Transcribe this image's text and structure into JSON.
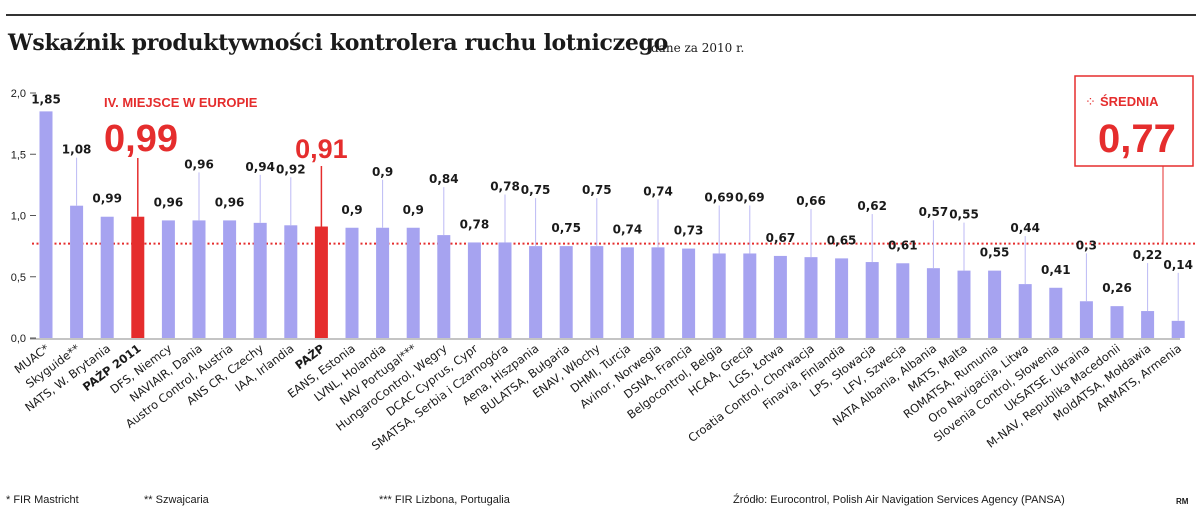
{
  "header": {
    "title": "Wskaźnik produktywności kontrolera ruchu lotniczego",
    "subtitle": "dane za 2010 r."
  },
  "chart_data": {
    "type": "bar",
    "title": "Wskaźnik produktywności kontrolera ruchu lotniczego",
    "subtitle": "dane za 2010 r.",
    "xlabel": "",
    "ylabel": "",
    "ylim": [
      0,
      2.0
    ],
    "yticks": [
      "0,0",
      "0,5",
      "1,0",
      "1,5",
      "2,0"
    ],
    "ytick_values": [
      0,
      0.5,
      1.0,
      1.5,
      2.0
    ],
    "grid": false,
    "legend": "none",
    "categories": [
      "MUAC*",
      "Skyguide**",
      "NATS, W. Brytania",
      "PAŻP 2011",
      "DFS, Niemcy",
      "NAVIAIR, Dania",
      "Austro Control, Austria",
      "ANS CR, Czechy",
      "IAA, Irlandia",
      "PAŻP",
      "EANS, Estonia",
      "LVNL, Holandia",
      "NAV Portugal***",
      "HungaroControl, Węgry",
      "DCAC Cyprus, Cypr",
      "SMATSA, Serbia i Czarnogóra",
      "Aena, Hiszpania",
      "BULATSA, Bułgaria",
      "ENAV, Włochy",
      "DHMI, Turcja",
      "Avinor, Norwegia",
      "DSNA, Francja",
      "Belgocontrol, Belgia",
      "HCAA, Grecja",
      "LGS, Łotwa",
      "Croatia Control, Chorwacja",
      "Finavia, Finlandia",
      "LPS, Słowacja",
      "LFV, Szwecja",
      "NATA Albania, Albania",
      "MATS, Malta",
      "ROMATSA, Rumunia",
      "Oro Navigacija, Litwa",
      "Slovenia Control, Słowenia",
      "UkSATSE, Ukraina",
      "M-NAV, Republika Macedonii",
      "MoldATSA, Mołdawia",
      "ARMATS, Armenia"
    ],
    "values": [
      1.85,
      1.08,
      0.99,
      0.99,
      0.96,
      0.96,
      0.96,
      0.94,
      0.92,
      0.91,
      0.9,
      0.9,
      0.9,
      0.84,
      0.78,
      0.78,
      0.75,
      0.75,
      0.75,
      0.74,
      0.74,
      0.73,
      0.69,
      0.69,
      0.67,
      0.66,
      0.65,
      0.62,
      0.61,
      0.57,
      0.55,
      0.55,
      0.44,
      0.41,
      0.3,
      0.26,
      0.22,
      0.14
    ],
    "value_labels": [
      "1,85",
      "1,08",
      "0,99",
      "",
      "0,96",
      "0,96",
      "0,96",
      "0,94",
      "0,92",
      "",
      "0,9",
      "0,9",
      "0,9",
      "0,84",
      "0,78",
      "0,78",
      "0,75",
      "0,75",
      "0,75",
      "0,74",
      "0,74",
      "0,73",
      "0,69",
      "0,69",
      "0,67",
      "0,66",
      "0,65",
      "0,62",
      "0,61",
      "0,57",
      "0,55",
      "0,55",
      "0,44",
      "0,41",
      "0,3",
      "0,26",
      "0,22",
      "0,14"
    ],
    "highlighted": [
      3,
      9
    ],
    "average": {
      "label": "ŚREDNIA",
      "value": 0.77,
      "value_label": "0,77"
    },
    "annotations": {
      "rank": "IV. MIEJSCE W EUROPIE",
      "pazp2011_value": "0,99",
      "pazp_value": "0,91"
    },
    "colors": {
      "bar": "#a6a3f0",
      "highlight": "#e52d2d",
      "accent": "#e52d2d",
      "text": "#1a1a1a",
      "leader": "#bcbaf4"
    }
  },
  "footnotes": {
    "note1": "* FIR Mastricht",
    "note2": "** Szwajcaria",
    "note3": "*** FIR Lizbona, Portugalia",
    "source": "Źródło: Eurocontrol, Polish Air Navigation Services Agency (PANSA)",
    "credit": "RM"
  }
}
